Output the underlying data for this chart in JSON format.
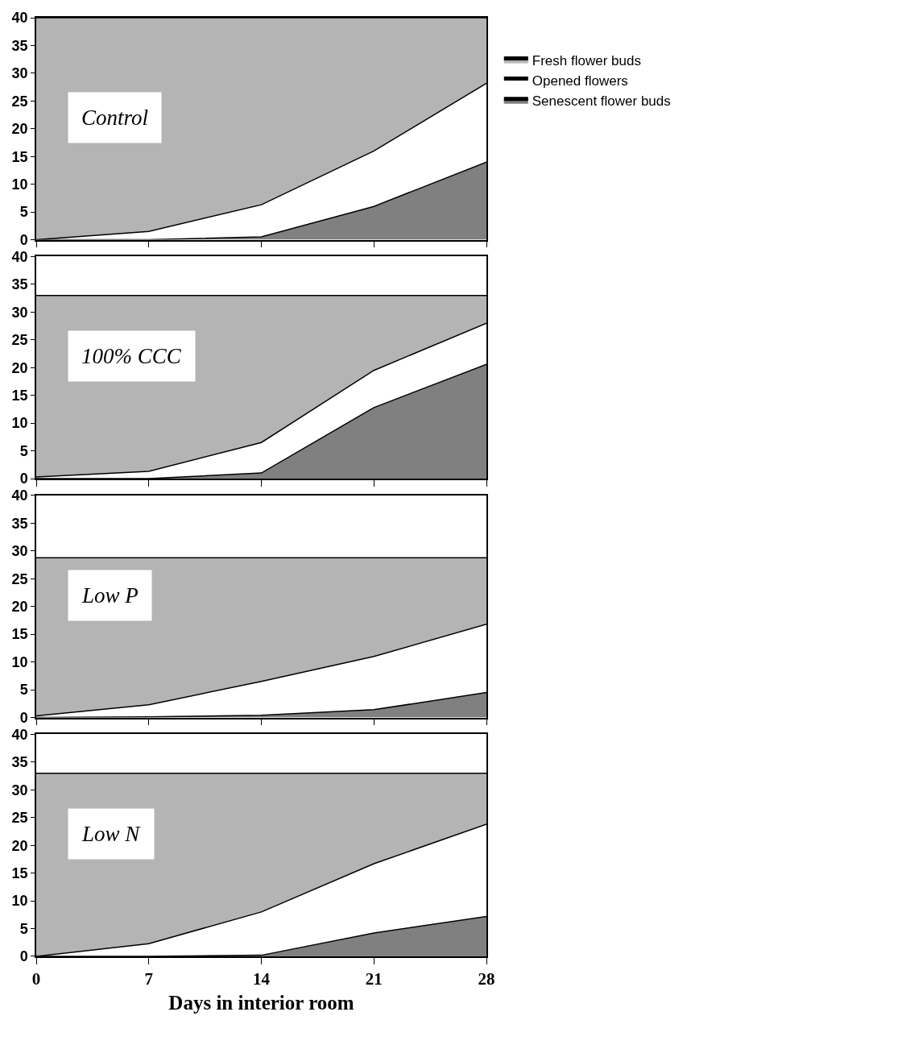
{
  "chart_data": [
    {
      "type": "area",
      "stacked": true,
      "annotations": [
        "Control"
      ],
      "x": [
        0,
        7,
        14,
        21,
        28
      ],
      "xlim": [
        0,
        28
      ],
      "xticks": [
        0,
        7,
        14,
        21,
        28
      ],
      "ylim": [
        0,
        40
      ],
      "yticks": [
        0,
        5,
        10,
        15,
        20,
        25,
        30,
        35,
        40
      ],
      "tick_labels": "y",
      "legend": "right",
      "series": [
        {
          "name": "Senescent flower buds",
          "color": "#808080",
          "values": [
            0,
            0,
            0.5,
            6,
            14
          ]
        },
        {
          "name": "Opened flowers",
          "color": "#ffffff",
          "values": [
            0,
            1.5,
            5.8,
            10,
            14.2
          ]
        },
        {
          "name": "Fresh flower buds",
          "color": "#b4b4b4",
          "values": [
            40,
            38.5,
            33.7,
            24,
            11.8
          ]
        }
      ]
    },
    {
      "type": "area",
      "stacked": true,
      "annotations": [
        "100% CCC"
      ],
      "x": [
        0,
        7,
        14,
        21,
        28
      ],
      "xlim": [
        0,
        28
      ],
      "xticks": [
        0,
        7,
        14,
        21,
        28
      ],
      "ylim": [
        0,
        40
      ],
      "yticks": [
        0,
        5,
        10,
        15,
        20,
        25,
        30,
        35,
        40
      ],
      "tick_labels": "y",
      "series": [
        {
          "color": "#808080",
          "values": [
            0,
            0,
            1,
            12.8,
            20.6
          ]
        },
        {
          "color": "#ffffff",
          "values": [
            0.3,
            1.3,
            5.5,
            6.7,
            7.4
          ]
        },
        {
          "color": "#b4b4b4",
          "values": [
            32.7,
            31.7,
            26.5,
            13.5,
            5
          ]
        }
      ]
    },
    {
      "type": "area",
      "stacked": true,
      "annotations": [
        "Low P"
      ],
      "x": [
        0,
        7,
        14,
        21,
        28
      ],
      "xlim": [
        0,
        28
      ],
      "xticks": [
        0,
        7,
        14,
        21,
        28
      ],
      "ylim": [
        0,
        40
      ],
      "yticks": [
        0,
        5,
        10,
        15,
        20,
        25,
        30,
        35,
        40
      ],
      "tick_labels": "y",
      "series": [
        {
          "color": "#808080",
          "values": [
            0,
            0.1,
            0.4,
            1.4,
            4.5
          ]
        },
        {
          "color": "#ffffff",
          "values": [
            0.3,
            2.2,
            6.1,
            9.6,
            12.3
          ]
        },
        {
          "color": "#b4b4b4",
          "values": [
            28.5,
            26.5,
            22.3,
            17.8,
            12
          ]
        }
      ]
    },
    {
      "type": "area",
      "stacked": true,
      "annotations": [
        "Low N"
      ],
      "xlabel": "Days in interior room",
      "x": [
        0,
        7,
        14,
        21,
        28
      ],
      "xlim": [
        0,
        28
      ],
      "xticks": [
        0,
        7,
        14,
        21,
        28
      ],
      "ylim": [
        0,
        40
      ],
      "yticks": [
        0,
        5,
        10,
        15,
        20,
        25,
        30,
        35,
        40
      ],
      "series": [
        {
          "color": "#808080",
          "values": [
            0,
            0,
            0.2,
            4.2,
            7.2
          ]
        },
        {
          "color": "#ffffff",
          "values": [
            0,
            2.3,
            7.8,
            12.5,
            16.6
          ]
        },
        {
          "color": "#b4b4b4",
          "values": [
            33,
            30.7,
            25,
            16.3,
            9.2
          ]
        }
      ]
    }
  ]
}
